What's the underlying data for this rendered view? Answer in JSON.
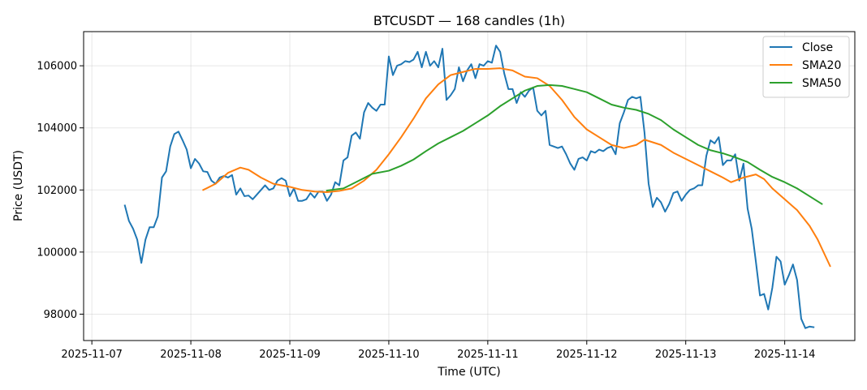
{
  "chart_data": {
    "type": "line",
    "title": "BTCUSDT — 168 candles (1h)",
    "xlabel": "Time (UTC)",
    "ylabel": "Price (USDT)",
    "x_ticks": [
      "2025-11-07",
      "2025-11-08",
      "2025-11-09",
      "2025-11-10",
      "2025-11-11",
      "2025-11-12",
      "2025-11-13",
      "2025-11-14"
    ],
    "y_ticks": [
      98000,
      100000,
      102000,
      104000,
      106000
    ],
    "x_range": [
      "2025-11-06 22:00",
      "2025-11-14 17:00"
    ],
    "ylim": [
      97150,
      107100
    ],
    "grid": true,
    "legend_position": "top-right",
    "colors": {
      "Close": "#1f77b4",
      "SMA20": "#ff7f0e",
      "SMA50": "#2ca02c"
    },
    "series": [
      {
        "name": "Close",
        "start": "2025-11-07 08:00",
        "step_hours": 1,
        "values": [
          101500,
          101000,
          100750,
          100400,
          99650,
          100400,
          100800,
          100800,
          101150,
          102400,
          102600,
          103400,
          103800,
          103880,
          103600,
          103300,
          102700,
          103000,
          102850,
          102600,
          102580,
          102300,
          102200,
          102400,
          102450,
          102400,
          102480,
          101850,
          102050,
          101800,
          101820,
          101700,
          101850,
          102000,
          102150,
          102000,
          102050,
          102300,
          102380,
          102300,
          101800,
          102050,
          101650,
          101650,
          101700,
          101900,
          101750,
          101950,
          101950,
          101650,
          101850,
          102250,
          102150,
          102950,
          103050,
          103750,
          103850,
          103650,
          104500,
          104800,
          104650,
          104550,
          104750,
          104750,
          106300,
          105700,
          106000,
          106050,
          106150,
          106120,
          106200,
          106450,
          105950,
          106450,
          106000,
          106150,
          105950,
          106550,
          104900,
          105050,
          105250,
          105950,
          105500,
          105850,
          106050,
          105600,
          106050,
          106000,
          106150,
          106100,
          106650,
          106450,
          105750,
          105250,
          105250,
          104800,
          105150,
          105000,
          105200,
          105300,
          104550,
          104400,
          104550,
          103450,
          103400,
          103350,
          103400,
          103150,
          102850,
          102650,
          103000,
          103050,
          102950,
          103250,
          103200,
          103300,
          103250,
          103350,
          103400,
          103150,
          104150,
          104500,
          104900,
          105000,
          104950,
          105000,
          103850,
          102200,
          101450,
          101750,
          101600,
          101300,
          101550,
          101900,
          101950,
          101650,
          101850,
          102000,
          102050,
          102150,
          102150,
          103100,
          103600,
          103500,
          103700,
          102800,
          102950,
          102950,
          103150,
          102300,
          102850,
          101400,
          100750,
          99700,
          98600,
          98650,
          98150,
          98850,
          99850,
          99700,
          98950,
          99250,
          99600,
          99100,
          97850,
          97550,
          97600,
          97580
        ]
      },
      {
        "name": "SMA20",
        "points": [
          [
            "2025-11-08 03:00",
            102000
          ],
          [
            "2025-11-08 06:00",
            102200
          ],
          [
            "2025-11-08 09:00",
            102550
          ],
          [
            "2025-11-08 12:00",
            102720
          ],
          [
            "2025-11-08 14:00",
            102650
          ],
          [
            "2025-11-08 17:00",
            102400
          ],
          [
            "2025-11-08 20:00",
            102200
          ],
          [
            "2025-11-09 00:00",
            102100
          ],
          [
            "2025-11-09 03:00",
            102000
          ],
          [
            "2025-11-09 06:00",
            101950
          ],
          [
            "2025-11-09 09:00",
            101930
          ],
          [
            "2025-11-09 12:00",
            101970
          ],
          [
            "2025-11-09 15:00",
            102050
          ],
          [
            "2025-11-09 18:00",
            102300
          ],
          [
            "2025-11-09 21:00",
            102650
          ],
          [
            "2025-11-10 00:00",
            103150
          ],
          [
            "2025-11-10 03:00",
            103700
          ],
          [
            "2025-11-10 06:00",
            104300
          ],
          [
            "2025-11-10 09:00",
            104950
          ],
          [
            "2025-11-10 12:00",
            105400
          ],
          [
            "2025-11-10 15:00",
            105700
          ],
          [
            "2025-11-10 18:00",
            105800
          ],
          [
            "2025-11-10 21:00",
            105900
          ],
          [
            "2025-11-11 00:00",
            105900
          ],
          [
            "2025-11-11 03:00",
            105920
          ],
          [
            "2025-11-11 06:00",
            105850
          ],
          [
            "2025-11-11 09:00",
            105650
          ],
          [
            "2025-11-11 12:00",
            105600
          ],
          [
            "2025-11-11 15:00",
            105350
          ],
          [
            "2025-11-11 18:00",
            104900
          ],
          [
            "2025-11-11 21:00",
            104350
          ],
          [
            "2025-11-12 00:00",
            103950
          ],
          [
            "2025-11-12 03:00",
            103700
          ],
          [
            "2025-11-12 06:00",
            103450
          ],
          [
            "2025-11-12 09:00",
            103350
          ],
          [
            "2025-11-12 12:00",
            103450
          ],
          [
            "2025-11-12 14:00",
            103620
          ],
          [
            "2025-11-12 18:00",
            103450
          ],
          [
            "2025-11-12 21:00",
            103200
          ],
          [
            "2025-11-13 00:00",
            103000
          ],
          [
            "2025-11-13 03:00",
            102800
          ],
          [
            "2025-11-13 06:00",
            102600
          ],
          [
            "2025-11-13 09:00",
            102400
          ],
          [
            "2025-11-13 11:00",
            102250
          ],
          [
            "2025-11-13 14:00",
            102400
          ],
          [
            "2025-11-13 17:00",
            102500
          ],
          [
            "2025-11-13 19:00",
            102350
          ],
          [
            "2025-11-13 21:00",
            102050
          ],
          [
            "2025-11-14 00:00",
            101700
          ],
          [
            "2025-11-14 03:00",
            101350
          ],
          [
            "2025-11-14 06:00",
            100850
          ],
          [
            "2025-11-14 08:00",
            100400
          ],
          [
            "2025-11-14 11:00",
            99550
          ]
        ]
      },
      {
        "name": "SMA50",
        "points": [
          [
            "2025-11-09 09:00",
            101980
          ],
          [
            "2025-11-09 13:00",
            102050
          ],
          [
            "2025-11-09 16:00",
            102250
          ],
          [
            "2025-11-09 20:00",
            102520
          ],
          [
            "2025-11-10 00:00",
            102620
          ],
          [
            "2025-11-10 03:00",
            102780
          ],
          [
            "2025-11-10 06:00",
            102980
          ],
          [
            "2025-11-10 09:00",
            103250
          ],
          [
            "2025-11-10 12:00",
            103500
          ],
          [
            "2025-11-10 15:00",
            103700
          ],
          [
            "2025-11-10 18:00",
            103900
          ],
          [
            "2025-11-10 21:00",
            104150
          ],
          [
            "2025-11-11 00:00",
            104400
          ],
          [
            "2025-11-11 03:00",
            104700
          ],
          [
            "2025-11-11 06:00",
            104950
          ],
          [
            "2025-11-11 09:00",
            105200
          ],
          [
            "2025-11-11 12:00",
            105350
          ],
          [
            "2025-11-11 15:00",
            105380
          ],
          [
            "2025-11-11 18:00",
            105350
          ],
          [
            "2025-11-11 21:00",
            105250
          ],
          [
            "2025-11-12 00:00",
            105150
          ],
          [
            "2025-11-12 03:00",
            104950
          ],
          [
            "2025-11-12 06:00",
            104750
          ],
          [
            "2025-11-12 09:00",
            104650
          ],
          [
            "2025-11-12 12:00",
            104580
          ],
          [
            "2025-11-12 15:00",
            104450
          ],
          [
            "2025-11-12 18:00",
            104250
          ],
          [
            "2025-11-12 21:00",
            103950
          ],
          [
            "2025-11-13 00:00",
            103700
          ],
          [
            "2025-11-13 03:00",
            103450
          ],
          [
            "2025-11-13 06:00",
            103280
          ],
          [
            "2025-11-13 09:00",
            103180
          ],
          [
            "2025-11-13 12:00",
            103050
          ],
          [
            "2025-11-13 15:00",
            102900
          ],
          [
            "2025-11-13 18:00",
            102650
          ],
          [
            "2025-11-13 21:00",
            102420
          ],
          [
            "2025-11-14 00:00",
            102250
          ],
          [
            "2025-11-14 03:00",
            102050
          ],
          [
            "2025-11-14 06:00",
            101800
          ],
          [
            "2025-11-14 09:00",
            101550
          ]
        ]
      }
    ]
  }
}
